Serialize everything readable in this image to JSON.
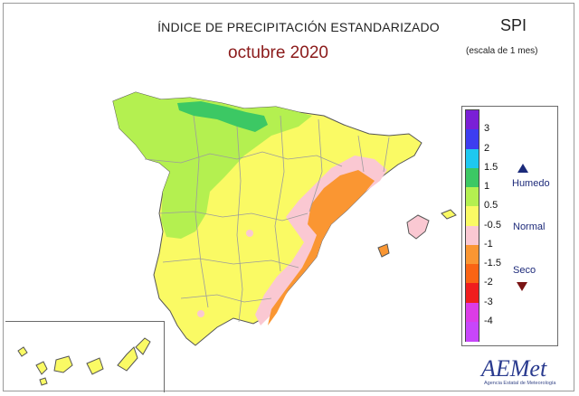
{
  "header": {
    "title": "ÍNDICE DE PRECIPITACIÓN ESTANDARIZADO",
    "subtitle": "octubre 2020",
    "index": "SPI",
    "scale": "(escala de 1 mes)"
  },
  "legend": {
    "ticks": [
      "3",
      "2",
      "1.5",
      "1",
      "0.5",
      "-0.5",
      "-1",
      "-1.5",
      "-2",
      "-3",
      "-4"
    ],
    "colors": [
      "#7a1fd6",
      "#3d3df0",
      "#1ec8f0",
      "#3cc864",
      "#b4f050",
      "#fafa64",
      "#fac8d2",
      "#fa9632",
      "#fa6414",
      "#f01e1e",
      "#dc3ce6",
      "#c846fa"
    ],
    "categories": {
      "wet": "Humedo",
      "normal": "Normal",
      "dry": "Seco"
    }
  },
  "logo": {
    "name": "AEMet",
    "subtitle": "Agencia Estatal de Meteorología"
  },
  "colors": {
    "background": "#ffffff",
    "title": "#222222",
    "subtitle": "#8b1a1a",
    "category_text": "#1d2a7a"
  }
}
